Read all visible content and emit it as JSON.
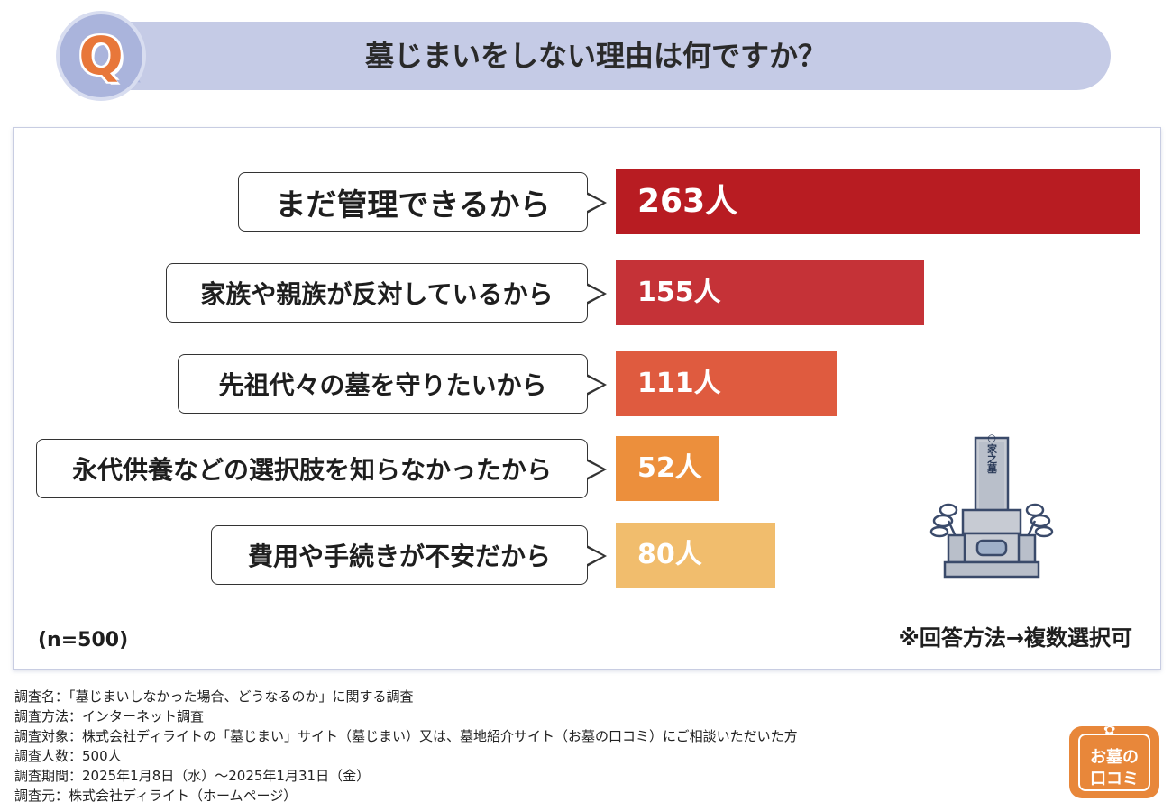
{
  "header": {
    "question_mark": "Q",
    "title": "墓じまいをしない理由は何ですか？"
  },
  "chart_data": {
    "type": "bar",
    "orientation": "horizontal",
    "categories": [
      "まだ管理できるから",
      "家族や親族が反対しているから",
      "先祖代々の墓を守りたいから",
      "永代供養などの選択肢を知らなかったから",
      "費用や手続きが不安だから"
    ],
    "values": [
      263,
      155,
      111,
      52,
      80
    ],
    "value_labels": [
      "263人",
      "155人",
      "111人",
      "52人",
      "80人"
    ],
    "colors": [
      "#b81c22",
      "#c53237",
      "#df5b3f",
      "#ec8f3c",
      "#f1bd6d"
    ],
    "sample_note": "(n=500)",
    "method_note": "※回答方法→複数選択可"
  },
  "illustration": {
    "tombstone_text": "○○家之墓"
  },
  "footer": {
    "lines": [
      "調査名：「墓じまいしなかった場合、どうなるのか」に関する調査",
      "調査方法：インターネット調査",
      "調査対象：株式会社ディライトの「墓じまい」サイト（墓じまい）又は、墓地紹介サイト（お墓の口コミ）にご相談いただいた方",
      "調査人数：500人",
      "調査期間：2025年1月8日（水）〜2025年1月31日（金）",
      "調査元：株式会社ディライト（ホームページ）"
    ]
  },
  "logo": {
    "line1": "お墓の",
    "line2": "口コミ"
  }
}
